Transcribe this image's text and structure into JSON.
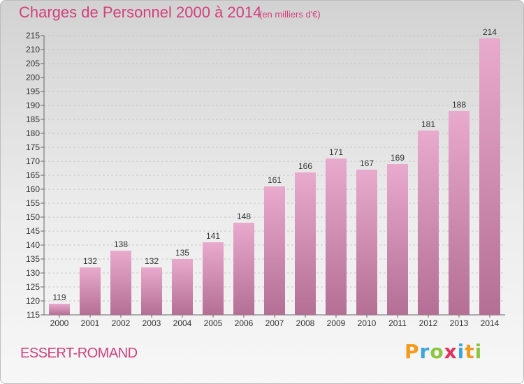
{
  "header": {
    "title": "Charges de Personnel 2000 à 2014",
    "subtitle": "(en milliers d'€)"
  },
  "footer": {
    "commune": "ESSERT-ROMAND",
    "logo_text": "Proxiti"
  },
  "colors": {
    "accent": "#d2407a",
    "bar_light": "#e8aacd",
    "bar_dark": "#b46f94"
  },
  "chart_data": {
    "type": "bar",
    "categories": [
      "2000",
      "2001",
      "2002",
      "2003",
      "2004",
      "2005",
      "2006",
      "2007",
      "2008",
      "2009",
      "2010",
      "2011",
      "2012",
      "2013",
      "2014"
    ],
    "values": [
      119,
      132,
      138,
      132,
      135,
      141,
      148,
      161,
      166,
      171,
      167,
      169,
      181,
      188,
      214
    ],
    "ylim": [
      115,
      215
    ],
    "yticks": [
      115,
      120,
      125,
      130,
      135,
      140,
      145,
      150,
      155,
      160,
      165,
      170,
      175,
      180,
      185,
      190,
      195,
      200,
      205,
      210,
      215
    ],
    "grid": true,
    "data_labels": true,
    "legend": "none"
  }
}
